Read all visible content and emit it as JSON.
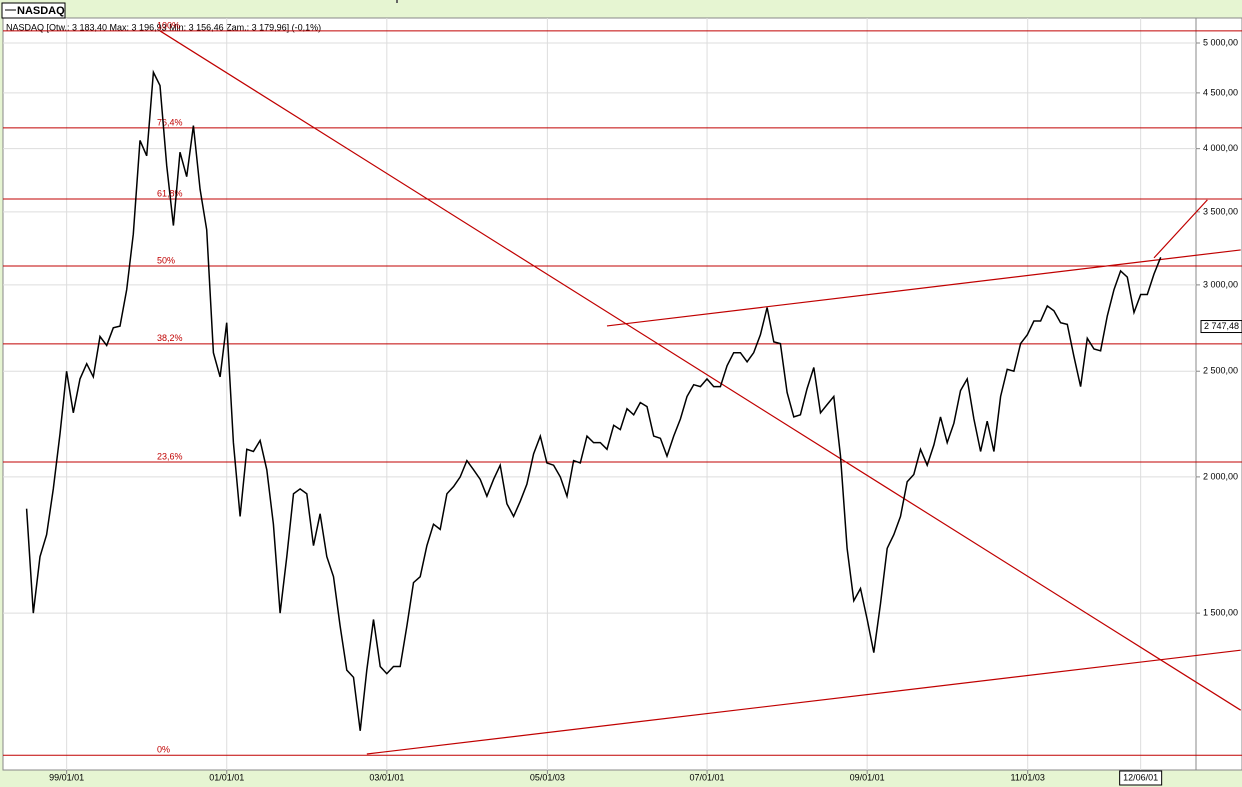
{
  "chart_data": {
    "type": "line",
    "legend": "NASDAQ",
    "title": "NASDAQ [Otw.: 3 183,40  Max: 3 196,93  Min: 3 156,46  Zam.: 3 179,96] (-0,1%)",
    "log_scale": true,
    "grid": true,
    "xlim": [
      "1998-03-15",
      "2013-02-10"
    ],
    "ylim": [
      1077,
      5271
    ],
    "xticks": [
      {
        "value": "1999-01-01",
        "label": "99/01/01"
      },
      {
        "value": "2001-01-01",
        "label": "01/01/01"
      },
      {
        "value": "2003-01-01",
        "label": "03/01/01"
      },
      {
        "value": "2005-01-03",
        "label": "05/01/03"
      },
      {
        "value": "2007-01-01",
        "label": "07/01/01"
      },
      {
        "value": "2009-01-01",
        "label": "09/01/01"
      },
      {
        "value": "2011-01-03",
        "label": "11/01/03"
      },
      {
        "value": "2012-06-01",
        "label": "12/06/01"
      }
    ],
    "yticks": [
      {
        "value": 1500,
        "label": "1 500,00"
      },
      {
        "value": 2000,
        "label": "2 000,00"
      },
      {
        "value": 2500,
        "label": "2 500,00"
      },
      {
        "value": 3000,
        "label": "3 000,00"
      },
      {
        "value": 3500,
        "label": "3 500,00"
      },
      {
        "value": 4000,
        "label": "4 000,00"
      },
      {
        "value": 4500,
        "label": "4 500,00"
      },
      {
        "value": 5000,
        "label": "5 000,00"
      }
    ],
    "price_tag": {
      "value": 2747.48,
      "label": "2 747,48"
    },
    "level_color": "#c00000",
    "levels": [
      {
        "value": 5129,
        "label": "100%"
      },
      {
        "value": 4179,
        "label": "76,4%"
      },
      {
        "value": 3597,
        "label": "61,8%"
      },
      {
        "value": 3122,
        "label": "50%"
      },
      {
        "value": 2649,
        "label": "38,2%"
      },
      {
        "value": 2064,
        "label": "23,6%"
      },
      {
        "value": 1111,
        "label": "0%"
      }
    ],
    "trend_lines": [
      {
        "x": [
          "2000-03",
          "2013-09"
        ],
        "values": [
          5129,
          1222
        ]
      },
      {
        "x": [
          "2002-10",
          "2013-09"
        ],
        "values": [
          1114,
          1387
        ]
      },
      {
        "x": [
          "2005-10",
          "2013-09"
        ],
        "values": [
          2751,
          3230
        ]
      },
      {
        "x": [
          "2012-08",
          "2013-04"
        ],
        "values": [
          3176,
          3590
        ]
      }
    ],
    "x": [
      "1998-07",
      "1998-08",
      "1998-09",
      "1998-10",
      "1998-11",
      "1998-12",
      "1999-01",
      "1999-02",
      "1999-03",
      "1999-04",
      "1999-05",
      "1999-06",
      "1999-07",
      "1999-08",
      "1999-09",
      "1999-10",
      "1999-11",
      "1999-12",
      "2000-01",
      "2000-02",
      "2000-03",
      "2000-04",
      "2000-05",
      "2000-06",
      "2000-07",
      "2000-08",
      "2000-09",
      "2000-10",
      "2000-11",
      "2000-12",
      "2001-01",
      "2001-02",
      "2001-03",
      "2001-04",
      "2001-05",
      "2001-06",
      "2001-07",
      "2001-08",
      "2001-09",
      "2001-10",
      "2001-11",
      "2001-12",
      "2002-01",
      "2002-02",
      "2002-03",
      "2002-04",
      "2002-05",
      "2002-06",
      "2002-07",
      "2002-08",
      "2002-09",
      "2002-10",
      "2002-11",
      "2002-12",
      "2003-01",
      "2003-02",
      "2003-03",
      "2003-04",
      "2003-05",
      "2003-06",
      "2003-07",
      "2003-08",
      "2003-09",
      "2003-10",
      "2003-11",
      "2003-12",
      "2004-01",
      "2004-02",
      "2004-03",
      "2004-04",
      "2004-05",
      "2004-06",
      "2004-07",
      "2004-08",
      "2004-09",
      "2004-10",
      "2004-11",
      "2004-12",
      "2005-01",
      "2005-02",
      "2005-03",
      "2005-04",
      "2005-05",
      "2005-06",
      "2005-07",
      "2005-08",
      "2005-09",
      "2005-10",
      "2005-11",
      "2005-12",
      "2006-01",
      "2006-02",
      "2006-03",
      "2006-04",
      "2006-05",
      "2006-06",
      "2006-07",
      "2006-08",
      "2006-09",
      "2006-10",
      "2006-11",
      "2006-12",
      "2007-01",
      "2007-02",
      "2007-03",
      "2007-04",
      "2007-05",
      "2007-06",
      "2007-07",
      "2007-08",
      "2007-09",
      "2007-10",
      "2007-11",
      "2007-12",
      "2008-01",
      "2008-02",
      "2008-03",
      "2008-04",
      "2008-05",
      "2008-06",
      "2008-07",
      "2008-08",
      "2008-09",
      "2008-10",
      "2008-11",
      "2008-12",
      "2009-01",
      "2009-02",
      "2009-03",
      "2009-04",
      "2009-05",
      "2009-06",
      "2009-07",
      "2009-08",
      "2009-09",
      "2009-10",
      "2009-11",
      "2009-12",
      "2010-01",
      "2010-02",
      "2010-03",
      "2010-04",
      "2010-05",
      "2010-06",
      "2010-07",
      "2010-08",
      "2010-09",
      "2010-10",
      "2010-11",
      "2010-12",
      "2011-01",
      "2011-02",
      "2011-03",
      "2011-04",
      "2011-05",
      "2011-06",
      "2011-07",
      "2011-08",
      "2011-09",
      "2011-10",
      "2011-11",
      "2011-12",
      "2012-01",
      "2012-02",
      "2012-03",
      "2012-04",
      "2012-05",
      "2012-06",
      "2012-07",
      "2012-08",
      "2012-09"
    ],
    "series": [
      {
        "name": "NASDAQ",
        "color": "#000000",
        "values": [
          1870,
          1500,
          1690,
          1770,
          1950,
          2190,
          2500,
          2290,
          2460,
          2540,
          2470,
          2690,
          2640,
          2740,
          2750,
          2970,
          3340,
          4070,
          3940,
          4700,
          4570,
          3860,
          3400,
          3970,
          3770,
          4200,
          3670,
          3370,
          2600,
          2470,
          2770,
          2150,
          1840,
          2120,
          2110,
          2160,
          2030,
          1810,
          1500,
          1690,
          1930,
          1950,
          1930,
          1730,
          1850,
          1690,
          1620,
          1460,
          1330,
          1310,
          1170,
          1330,
          1480,
          1340,
          1320,
          1340,
          1340,
          1460,
          1600,
          1620,
          1730,
          1810,
          1790,
          1930,
          1960,
          2000,
          2070,
          2030,
          1990,
          1920,
          1990,
          2050,
          1890,
          1840,
          1900,
          1970,
          2100,
          2180,
          2060,
          2050,
          2000,
          1920,
          2070,
          2060,
          2180,
          2150,
          2150,
          2120,
          2230,
          2210,
          2310,
          2280,
          2340,
          2320,
          2180,
          2170,
          2090,
          2180,
          2260,
          2370,
          2430,
          2420,
          2460,
          2420,
          2420,
          2530,
          2600,
          2600,
          2550,
          2600,
          2700,
          2860,
          2660,
          2650,
          2390,
          2270,
          2280,
          2410,
          2520,
          2290,
          2330,
          2370,
          2090,
          1720,
          1540,
          1580,
          1480,
          1380,
          1530,
          1720,
          1770,
          1840,
          1980,
          2010,
          2120,
          2050,
          2140,
          2270,
          2150,
          2240,
          2400,
          2460,
          2260,
          2110,
          2250,
          2110,
          2370,
          2510,
          2500,
          2650,
          2700,
          2780,
          2780,
          2870,
          2840,
          2770,
          2760,
          2580,
          2420,
          2680,
          2620,
          2610,
          2810,
          2970,
          3090,
          3050,
          2830,
          2940,
          2940,
          3070,
          3180
        ]
      }
    ]
  }
}
